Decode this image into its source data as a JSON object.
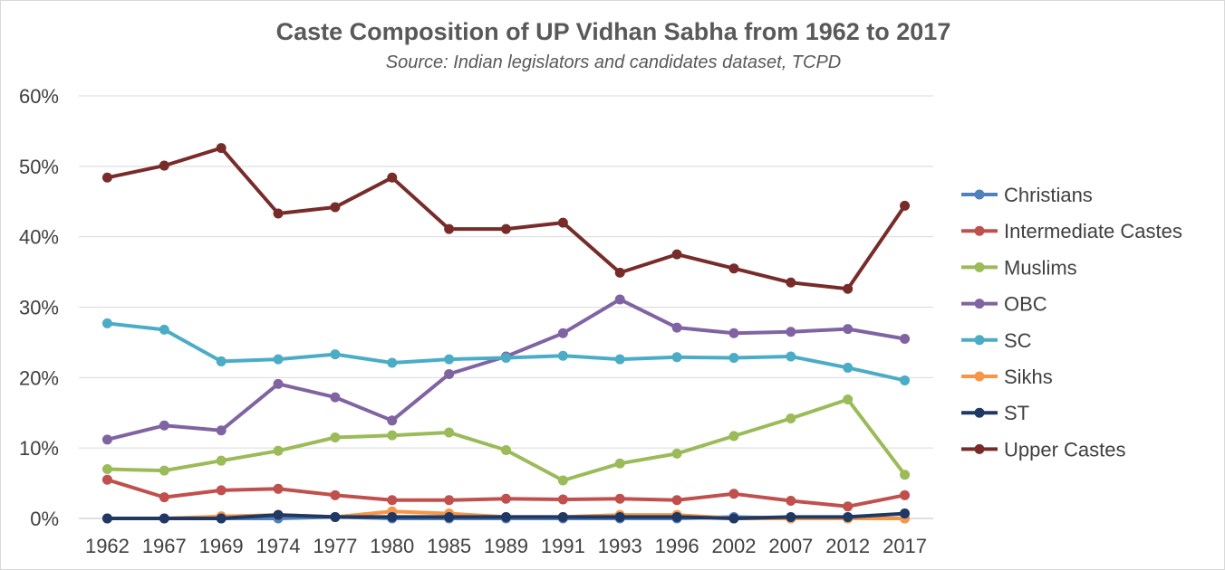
{
  "chart_data": {
    "type": "line",
    "title": "Caste Composition of UP Vidhan Sabha from 1962 to 2017",
    "subtitle": "Source: Indian legislators and candidates dataset, TCPD",
    "xlabel": "",
    "ylabel": "",
    "ylim": [
      0,
      60
    ],
    "y_ticks": [
      "0%",
      "10%",
      "20%",
      "30%",
      "40%",
      "50%",
      "60%"
    ],
    "grid": true,
    "legend_position": "right",
    "categories": [
      "1962",
      "1967",
      "1969",
      "1974",
      "1977",
      "1980",
      "1985",
      "1989",
      "1991",
      "1993",
      "1996",
      "2002",
      "2007",
      "2012",
      "2017"
    ],
    "series": [
      {
        "name": "Christians",
        "color": "#4f81bd",
        "values": [
          0,
          0,
          0,
          0,
          0.2,
          0,
          0,
          0,
          0,
          0,
          0,
          0.2,
          0,
          0,
          0
        ]
      },
      {
        "name": "Intermediate Castes",
        "color": "#c0504d",
        "values": [
          5.5,
          3,
          4,
          4.2,
          3.3,
          2.6,
          2.6,
          2.8,
          2.7,
          2.8,
          2.6,
          3.5,
          2.5,
          1.7,
          3.3
        ]
      },
      {
        "name": "Muslims",
        "color": "#9bbb59",
        "values": [
          7,
          6.8,
          8.2,
          9.6,
          11.5,
          11.8,
          12.2,
          9.7,
          5.4,
          7.8,
          9.2,
          11.7,
          14.2,
          16.9,
          6.2
        ]
      },
      {
        "name": "OBC",
        "color": "#8064a2",
        "values": [
          11.2,
          13.2,
          12.5,
          19.1,
          17.2,
          13.9,
          20.5,
          23,
          26.3,
          31.1,
          27.1,
          26.3,
          26.5,
          26.9,
          25.5
        ]
      },
      {
        "name": "SC",
        "color": "#4bacc6",
        "values": [
          27.7,
          26.8,
          22.3,
          22.6,
          23.3,
          22.1,
          22.6,
          22.8,
          23.1,
          22.6,
          22.9,
          22.8,
          23,
          21.4,
          19.6
        ]
      },
      {
        "name": "Sikhs",
        "color": "#f79646",
        "values": [
          0,
          0,
          0.3,
          0.5,
          0.2,
          1,
          0.7,
          0.2,
          0.2,
          0.5,
          0.5,
          0,
          0,
          0,
          0
        ]
      },
      {
        "name": "ST",
        "color": "#1f3864",
        "values": [
          0,
          0,
          0,
          0.5,
          0.2,
          0.2,
          0.2,
          0.2,
          0.2,
          0.2,
          0.2,
          0,
          0.2,
          0.2,
          0.7
        ]
      },
      {
        "name": "Upper Castes",
        "color": "#772c2a",
        "values": [
          48.4,
          50.1,
          52.6,
          43.3,
          44.2,
          48.4,
          41.1,
          41.1,
          42,
          34.9,
          37.5,
          35.5,
          33.5,
          32.6,
          44.4
        ]
      }
    ]
  }
}
